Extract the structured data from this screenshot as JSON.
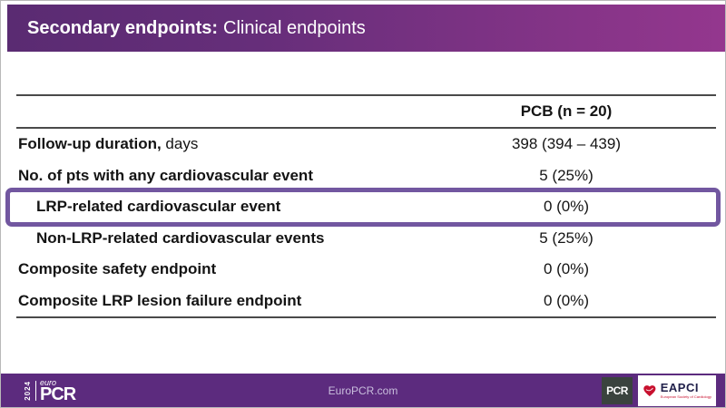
{
  "header": {
    "title_bold": "Secondary endpoints:",
    "title_regular": "Clinical endpoints"
  },
  "table": {
    "column_header": "PCB (n = 20)",
    "rows": [
      {
        "label_bold": "Follow-up duration,",
        "label_regular": " days",
        "value": "398 (394 – 439)",
        "indent": false,
        "highlight": false
      },
      {
        "label_bold": "No. of pts with any cardiovascular event",
        "label_regular": "",
        "value": "5 (25%)",
        "indent": false,
        "highlight": false
      },
      {
        "label_bold": "LRP-related cardiovascular event",
        "label_regular": "",
        "value": "0 (0%)",
        "indent": true,
        "highlight": true
      },
      {
        "label_bold": "Non-LRP-related cardiovascular events",
        "label_regular": "",
        "value": "5 (25%)",
        "indent": true,
        "highlight": false
      },
      {
        "label_bold": "Composite safety endpoint",
        "label_regular": "",
        "value": "0 (0%)",
        "indent": false,
        "highlight": false
      },
      {
        "label_bold": "Composite LRP lesion failure endpoint",
        "label_regular": "",
        "value": "0 (0%)",
        "indent": false,
        "highlight": false
      }
    ]
  },
  "footer": {
    "year": "2024",
    "logo_euro": "euro",
    "logo_pcr": "PCR",
    "website": "EuroPCR.com",
    "pcr_badge": "PCR",
    "eapci_name": "EAPCI",
    "eapci_tagline": "European Society of Cardiology"
  },
  "colors": {
    "header_gradient_start": "#5a2b72",
    "header_gradient_end": "#94378e",
    "footer_purple": "#5c2b7e",
    "highlight_border": "#7257a0",
    "table_line": "#4a4a4a",
    "pcr_badge_bg": "#3a433e",
    "eapci_red": "#c8102e",
    "eapci_navy": "#21214b",
    "footer_site_text": "#c9bedd"
  }
}
